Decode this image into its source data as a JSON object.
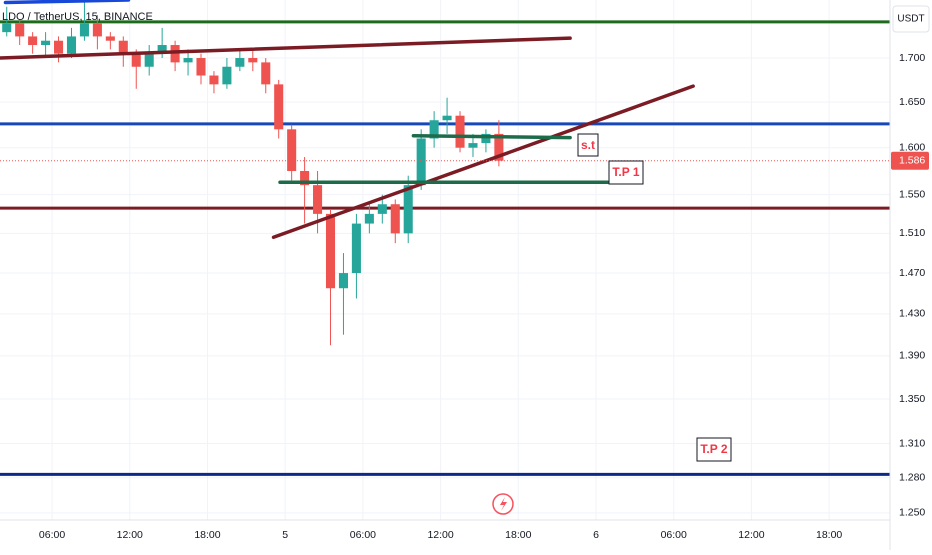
{
  "chart_data": {
    "type": "candlestick",
    "title": "LDO / TetherUS, 15, BINANCE",
    "axis_unit": "USDT",
    "log_scale": true,
    "grid": true,
    "up_color": "#26a69a",
    "down_color": "#ef5350",
    "xlim": [
      1.98,
      70.7
    ],
    "xticks": [
      {
        "value": 6,
        "label": "06:00"
      },
      {
        "value": 12,
        "label": "12:00"
      },
      {
        "value": 18,
        "label": "18:00"
      },
      {
        "value": 24,
        "label": "5"
      },
      {
        "value": 30,
        "label": "06:00"
      },
      {
        "value": 36,
        "label": "12:00"
      },
      {
        "value": 42,
        "label": "18:00"
      },
      {
        "value": 48,
        "label": "6"
      },
      {
        "value": 54,
        "label": "06:00"
      },
      {
        "value": 60,
        "label": "12:00"
      },
      {
        "value": 66,
        "label": "18:00"
      }
    ],
    "ylim": [
      1.244,
      1.768
    ],
    "yticks": [
      {
        "value": 1.7,
        "label": "1.700"
      },
      {
        "value": 1.65,
        "label": "1.650"
      },
      {
        "value": 1.6,
        "label": "1.600"
      },
      {
        "value": 1.55,
        "label": "1.550"
      },
      {
        "value": 1.51,
        "label": "1.510"
      },
      {
        "value": 1.47,
        "label": "1.470"
      },
      {
        "value": 1.43,
        "label": "1.430"
      },
      {
        "value": 1.39,
        "label": "1.390"
      },
      {
        "value": 1.35,
        "label": "1.350"
      },
      {
        "value": 1.31,
        "label": "1.310"
      },
      {
        "value": 1.28,
        "label": "1.280"
      },
      {
        "value": 1.25,
        "label": "1.250"
      }
    ],
    "candles": {
      "x": [
        2.5,
        3.5,
        4.5,
        5.5,
        6.5,
        7.5,
        8.5,
        9.5,
        10.5,
        11.5,
        12.5,
        13.5,
        14.5,
        15.5,
        16.5,
        17.5,
        18.5,
        19.5,
        20.5,
        21.5,
        22.5,
        23.5,
        24.5,
        25.5,
        26.5,
        27.5,
        28.5,
        29.5,
        30.5,
        31.5,
        32.5,
        33.5,
        34.5,
        35.5,
        36.5,
        37.5,
        38.5,
        39.5,
        40.5
      ],
      "open": [
        1.73,
        1.74,
        1.725,
        1.715,
        1.72,
        1.705,
        1.725,
        1.74,
        1.725,
        1.72,
        1.705,
        1.69,
        1.705,
        1.715,
        1.695,
        1.7,
        1.68,
        1.67,
        1.69,
        1.7,
        1.695,
        1.67,
        1.62,
        1.575,
        1.56,
        1.53,
        1.455,
        1.47,
        1.52,
        1.53,
        1.54,
        1.51,
        1.56,
        1.61,
        1.63,
        1.635,
        1.6,
        1.605,
        1.615
      ],
      "high": [
        1.76,
        1.745,
        1.73,
        1.73,
        1.725,
        1.735,
        1.765,
        1.75,
        1.73,
        1.725,
        1.71,
        1.715,
        1.735,
        1.72,
        1.71,
        1.705,
        1.685,
        1.7,
        1.71,
        1.71,
        1.7,
        1.675,
        1.625,
        1.59,
        1.575,
        1.535,
        1.49,
        1.53,
        1.54,
        1.55,
        1.545,
        1.57,
        1.62,
        1.64,
        1.655,
        1.64,
        1.615,
        1.62,
        1.63
      ],
      "low": [
        1.725,
        1.715,
        1.705,
        1.7,
        1.695,
        1.7,
        1.72,
        1.71,
        1.71,
        1.69,
        1.665,
        1.68,
        1.7,
        1.685,
        1.68,
        1.67,
        1.66,
        1.665,
        1.685,
        1.685,
        1.66,
        1.61,
        1.565,
        1.52,
        1.51,
        1.4,
        1.41,
        1.445,
        1.51,
        1.52,
        1.5,
        1.5,
        1.555,
        1.6,
        1.615,
        1.595,
        1.59,
        1.595,
        1.58
      ],
      "close": [
        1.74,
        1.725,
        1.715,
        1.72,
        1.705,
        1.725,
        1.74,
        1.725,
        1.72,
        1.705,
        1.69,
        1.705,
        1.715,
        1.695,
        1.7,
        1.68,
        1.67,
        1.69,
        1.7,
        1.695,
        1.67,
        1.62,
        1.575,
        1.56,
        1.53,
        1.455,
        1.47,
        1.52,
        1.53,
        1.54,
        1.51,
        1.56,
        1.61,
        1.63,
        1.635,
        1.6,
        1.605,
        1.615,
        1.586
      ]
    },
    "last_price": {
      "value": 1.586,
      "label": "1.586",
      "color": "#ef5350"
    },
    "hlines": [
      {
        "value": 1.742,
        "color": "#1e6b1e"
      },
      {
        "value": 1.626,
        "color": "#1848b8"
      },
      {
        "value": 1.536,
        "color": "#7b1c24"
      },
      {
        "value": 1.283,
        "color": "#0d2a8a"
      }
    ],
    "trendlines": [
      {
        "x": [
          2.4,
          11.9
        ],
        "y": [
          1.765,
          1.768
        ],
        "color": "#1848d8"
      },
      {
        "x": [
          1.98,
          46.0
        ],
        "y": [
          1.7,
          1.723
        ],
        "color": "#7b1c24"
      },
      {
        "x": [
          23.1,
          55.5
        ],
        "y": [
          1.506,
          1.668
        ],
        "color": "#7b1c24"
      },
      {
        "x": [
          33.9,
          46.0
        ],
        "y": [
          1.613,
          1.611
        ],
        "color": "#1e6b4a"
      },
      {
        "x": [
          23.6,
          48.9
        ],
        "y": [
          1.563,
          1.563
        ],
        "color": "#1e6b4a"
      }
    ],
    "annotations": [
      "s.t",
      "T.P 1",
      "T.P 2"
    ]
  }
}
